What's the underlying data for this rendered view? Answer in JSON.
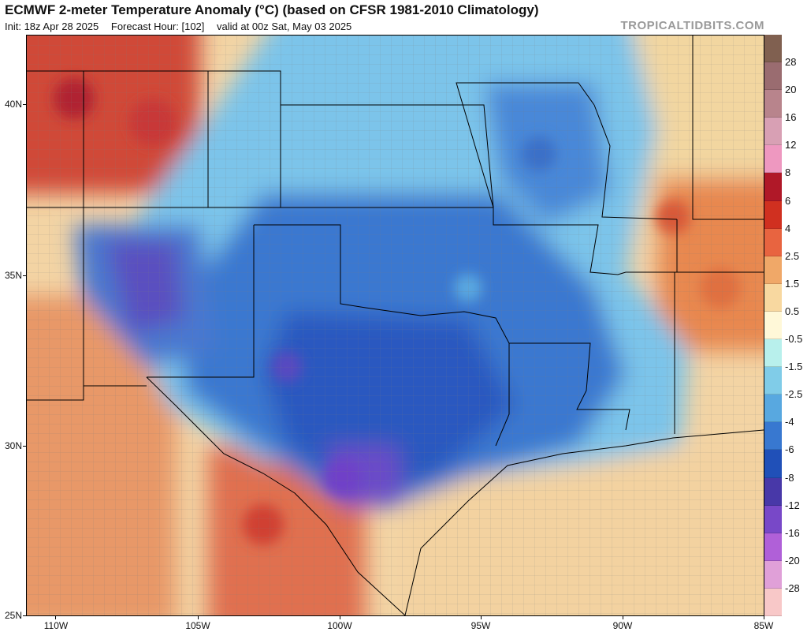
{
  "title": "ECMWF 2-meter Temperature Anomaly (°C) (based on CFSR 1981-2010 Climatology)",
  "init": "Init: 18z Apr 28 2025",
  "forecast_hour": "Forecast Hour: [102]",
  "valid": "valid at 00z Sat, May 03 2025",
  "brand": "TROPICALTIDBITS.COM",
  "lat_labels": [
    "40N",
    "35N",
    "30N",
    "25N"
  ],
  "lon_labels": [
    "110W",
    "105W",
    "100W",
    "95W",
    "90W",
    "85W"
  ],
  "colorbar": {
    "labels": [
      "28",
      "20",
      "16",
      "12",
      "8",
      "6",
      "4",
      "2.5",
      "1.5",
      "0.5",
      "-0.5",
      "-1.5",
      "-2.5",
      "-4",
      "-6",
      "-8",
      "-12",
      "-16",
      "-20",
      "-28"
    ],
    "colors": [
      "#806050",
      "#9a6c70",
      "#b8848c",
      "#d8a0b4",
      "#ee98c0",
      "#b01828",
      "#d03020",
      "#e86440",
      "#f0a868",
      "#f8d8a0",
      "#fff8d8",
      "#b8f0ec",
      "#80cce8",
      "#58a8e0",
      "#3878d0",
      "#2050b8",
      "#4838a8",
      "#7848c8",
      "#b060d8",
      "#e0a0d8",
      "#f8c8c8"
    ]
  },
  "colors": {
    "warm": "#f0c890",
    "hot": "#d85838",
    "cool": "#80c8ec",
    "cold": "#3878d0",
    "coldest": "#6048c0"
  }
}
